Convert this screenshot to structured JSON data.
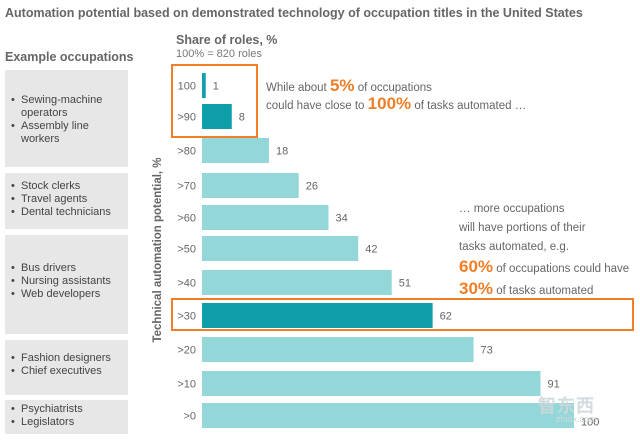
{
  "title": "Automation potential based on demonstrated technology of occupation titles in the United States",
  "occupations_header": "Example occupations",
  "share_header": "Share of roles, %",
  "share_sub": "100% = 820 roles",
  "occupation_groups": [
    {
      "items": [
        "Sewing-machine operators",
        "Assembly line workers"
      ]
    },
    {
      "items": [
        "Stock clerks",
        "Travel agents",
        "Dental technicians"
      ]
    },
    {
      "items": [
        "Bus drivers",
        "Nursing assistants",
        "Web developers"
      ]
    },
    {
      "items": [
        "Fashion designers",
        "Chief executives"
      ]
    },
    {
      "items": [
        "Psychiatrists",
        "Legislators"
      ]
    }
  ],
  "annotation_top": {
    "line1_pre": "While about ",
    "line1_big": "5%",
    "line1_post": " of occupations",
    "line2_pre": "could have close to ",
    "line2_big": "100%",
    "line2_post": " of tasks automated …"
  },
  "annotation_mid": {
    "line1": "… more occupations",
    "line2": "will have portions of their",
    "line3": "tasks automated, e.g.",
    "line4_big": "60%",
    "line4_post": " of occupations could have",
    "line5_big": "30%",
    "line5_post": " of tasks automated"
  },
  "watermark": "智东西",
  "watermark_sub": "zhidx.com",
  "colors": {
    "bar": "#93d7d9",
    "bar_highlight": "#0e9fab",
    "accent": "#f07e26"
  },
  "chart_data": {
    "type": "bar",
    "orientation": "horizontal",
    "categories": [
      "100",
      ">90",
      ">80",
      ">70",
      ">60",
      ">50",
      ">40",
      ">30",
      ">20",
      ">10",
      ">0"
    ],
    "values": [
      1,
      8,
      18,
      26,
      34,
      42,
      51,
      62,
      73,
      91,
      100
    ],
    "highlighted": [
      "100",
      ">90",
      ">30"
    ],
    "ylabel": "Technical automation potential, %",
    "xlabel": "Share of roles, %",
    "xlim": [
      0,
      100
    ]
  }
}
